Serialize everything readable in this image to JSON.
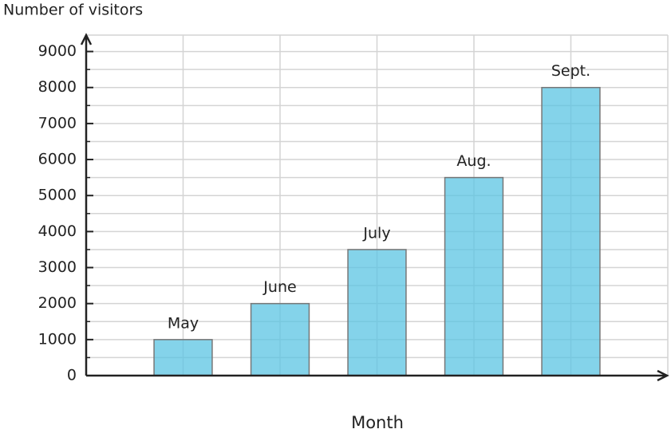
{
  "chart_data": {
    "type": "bar",
    "y_label": "Number of visitors",
    "x_label": "Month",
    "categories": [
      "May",
      "June",
      "July",
      "Aug.",
      "Sept."
    ],
    "values": [
      1000,
      2000,
      3500,
      5500,
      8000
    ],
    "color": "#5bc4e3",
    "ylim": [
      0,
      9500
    ],
    "yticks": [
      0,
      1000,
      2000,
      3000,
      4000,
      5000,
      6000,
      7000,
      8000,
      9000
    ],
    "yminorticks": [
      500,
      1500,
      2500,
      3500,
      4500,
      5500,
      6500,
      7500,
      8500
    ],
    "grid": true
  }
}
